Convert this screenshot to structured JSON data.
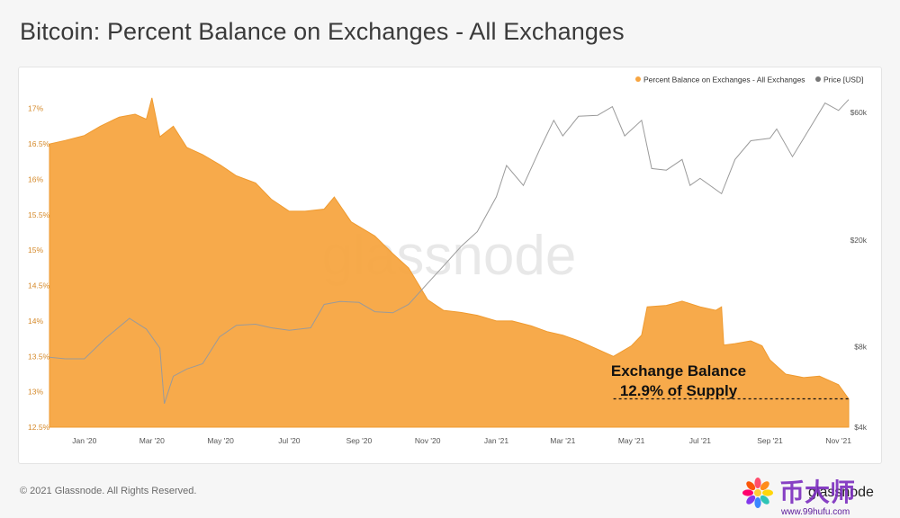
{
  "page": {
    "title": "Bitcoin: Percent Balance on Exchanges - All Exchanges",
    "copyright": "© 2021 Glassnode. All Rights Reserved.",
    "footer_brand": "glassnode",
    "watermark": "glassnode"
  },
  "colors": {
    "balance_fill": "#f7a541",
    "balance_stroke": "#ef9a2f",
    "price_line": "#9a9a9a",
    "left_tick": "#d58a2b",
    "right_tick": "#555555",
    "annotation": "#111111"
  },
  "brand_badge": {
    "name": "币大师",
    "url": "www.99hufu.com"
  },
  "chart_data": {
    "type": "area",
    "title": "Bitcoin: Percent Balance on Exchanges - All Exchanges",
    "legend_position": "top-right",
    "grid": false,
    "x_range": [
      "2019-12-01",
      "2021-11-10"
    ],
    "x_ticks": [
      {
        "label": "Jan '20",
        "date": "2020-01-01"
      },
      {
        "label": "Mar '20",
        "date": "2020-03-01"
      },
      {
        "label": "May '20",
        "date": "2020-05-01"
      },
      {
        "label": "Jul '20",
        "date": "2020-07-01"
      },
      {
        "label": "Sep '20",
        "date": "2020-09-01"
      },
      {
        "label": "Nov '20",
        "date": "2020-11-01"
      },
      {
        "label": "Jan '21",
        "date": "2021-01-01"
      },
      {
        "label": "Mar '21",
        "date": "2021-03-01"
      },
      {
        "label": "May '21",
        "date": "2021-05-01"
      },
      {
        "label": "Jul '21",
        "date": "2021-07-01"
      },
      {
        "label": "Sep '21",
        "date": "2021-09-01"
      },
      {
        "label": "Nov '21",
        "date": "2021-11-01"
      }
    ],
    "y_left": {
      "range": [
        12.5,
        17.2
      ],
      "ticks": [
        {
          "value": 12.5,
          "label": "12.5%"
        },
        {
          "value": 13,
          "label": "13%"
        },
        {
          "value": 13.5,
          "label": "13.5%"
        },
        {
          "value": 14,
          "label": "14%"
        },
        {
          "value": 14.5,
          "label": "14.5%"
        },
        {
          "value": 15,
          "label": "15%"
        },
        {
          "value": 15.5,
          "label": "15.5%"
        },
        {
          "value": 16,
          "label": "16%"
        },
        {
          "value": 16.5,
          "label": "16.5%"
        },
        {
          "value": 17,
          "label": "17%"
        }
      ]
    },
    "y_right": {
      "scale": "log",
      "range": [
        4000,
        70000
      ],
      "ticks": [
        {
          "value": 4000,
          "label": "$4k"
        },
        {
          "value": 8000,
          "label": "$8k"
        },
        {
          "value": 20000,
          "label": "$20k"
        },
        {
          "value": 60000,
          "label": "$60k"
        }
      ]
    },
    "series": [
      {
        "name": "Percent Balance on Exchanges - All Exchanges",
        "kind": "area",
        "axis": "left",
        "points": [
          [
            "2019-12-01",
            16.5
          ],
          [
            "2019-12-15",
            16.55
          ],
          [
            "2020-01-01",
            16.62
          ],
          [
            "2020-01-15",
            16.75
          ],
          [
            "2020-02-01",
            16.88
          ],
          [
            "2020-02-15",
            16.92
          ],
          [
            "2020-02-25",
            16.85
          ],
          [
            "2020-03-01",
            17.15
          ],
          [
            "2020-03-08",
            16.6
          ],
          [
            "2020-03-20",
            16.75
          ],
          [
            "2020-04-01",
            16.45
          ],
          [
            "2020-04-15",
            16.35
          ],
          [
            "2020-05-01",
            16.2
          ],
          [
            "2020-05-15",
            16.05
          ],
          [
            "2020-06-01",
            15.95
          ],
          [
            "2020-06-15",
            15.72
          ],
          [
            "2020-07-01",
            15.55
          ],
          [
            "2020-07-15",
            15.55
          ],
          [
            "2020-08-01",
            15.58
          ],
          [
            "2020-08-10",
            15.75
          ],
          [
            "2020-08-25",
            15.4
          ],
          [
            "2020-09-15",
            15.2
          ],
          [
            "2020-10-01",
            14.95
          ],
          [
            "2020-10-15",
            14.75
          ],
          [
            "2020-11-01",
            14.3
          ],
          [
            "2020-11-15",
            14.15
          ],
          [
            "2020-12-01",
            14.12
          ],
          [
            "2020-12-15",
            14.08
          ],
          [
            "2021-01-01",
            14.0
          ],
          [
            "2021-01-15",
            14.0
          ],
          [
            "2021-02-01",
            13.93
          ],
          [
            "2021-02-15",
            13.85
          ],
          [
            "2021-03-01",
            13.8
          ],
          [
            "2021-03-15",
            13.72
          ],
          [
            "2021-04-01",
            13.6
          ],
          [
            "2021-04-15",
            13.5
          ],
          [
            "2021-05-01",
            13.65
          ],
          [
            "2021-05-10",
            13.8
          ],
          [
            "2021-05-15",
            14.2
          ],
          [
            "2021-06-01",
            14.22
          ],
          [
            "2021-06-15",
            14.28
          ],
          [
            "2021-07-01",
            14.2
          ],
          [
            "2021-07-15",
            14.15
          ],
          [
            "2021-07-20",
            14.2
          ],
          [
            "2021-07-22",
            13.66
          ],
          [
            "2021-08-01",
            13.68
          ],
          [
            "2021-08-15",
            13.72
          ],
          [
            "2021-08-25",
            13.65
          ],
          [
            "2021-09-01",
            13.45
          ],
          [
            "2021-09-15",
            13.25
          ],
          [
            "2021-10-01",
            13.2
          ],
          [
            "2021-10-15",
            13.22
          ],
          [
            "2021-11-01",
            13.1
          ],
          [
            "2021-11-10",
            12.9
          ]
        ]
      },
      {
        "name": "Price [USD]",
        "kind": "line",
        "axis": "right",
        "points": [
          [
            "2019-12-01",
            7300
          ],
          [
            "2019-12-15",
            7200
          ],
          [
            "2020-01-01",
            7200
          ],
          [
            "2020-01-20",
            8600
          ],
          [
            "2020-02-10",
            10200
          ],
          [
            "2020-02-25",
            9300
          ],
          [
            "2020-03-08",
            7900
          ],
          [
            "2020-03-12",
            4900
          ],
          [
            "2020-03-20",
            6200
          ],
          [
            "2020-04-01",
            6600
          ],
          [
            "2020-04-15",
            6900
          ],
          [
            "2020-04-30",
            8700
          ],
          [
            "2020-05-15",
            9600
          ],
          [
            "2020-06-01",
            9700
          ],
          [
            "2020-06-15",
            9400
          ],
          [
            "2020-07-01",
            9200
          ],
          [
            "2020-07-20",
            9400
          ],
          [
            "2020-08-01",
            11500
          ],
          [
            "2020-08-15",
            11800
          ],
          [
            "2020-09-01",
            11700
          ],
          [
            "2020-09-15",
            10800
          ],
          [
            "2020-10-01",
            10700
          ],
          [
            "2020-10-15",
            11500
          ],
          [
            "2020-11-01",
            13800
          ],
          [
            "2020-11-15",
            16000
          ],
          [
            "2020-12-01",
            19000
          ],
          [
            "2020-12-15",
            21500
          ],
          [
            "2021-01-01",
            29000
          ],
          [
            "2021-01-10",
            38000
          ],
          [
            "2021-01-25",
            32000
          ],
          [
            "2021-02-10",
            45000
          ],
          [
            "2021-02-21",
            56000
          ],
          [
            "2021-03-01",
            49000
          ],
          [
            "2021-03-15",
            58000
          ],
          [
            "2021-04-01",
            58500
          ],
          [
            "2021-04-14",
            63000
          ],
          [
            "2021-04-25",
            49000
          ],
          [
            "2021-05-10",
            56000
          ],
          [
            "2021-05-19",
            37000
          ],
          [
            "2021-06-01",
            36500
          ],
          [
            "2021-06-15",
            40000
          ],
          [
            "2021-06-22",
            32000
          ],
          [
            "2021-07-01",
            34000
          ],
          [
            "2021-07-20",
            29800
          ],
          [
            "2021-08-01",
            40000
          ],
          [
            "2021-08-15",
            47000
          ],
          [
            "2021-09-01",
            48000
          ],
          [
            "2021-09-07",
            52000
          ],
          [
            "2021-09-21",
            41000
          ],
          [
            "2021-10-01",
            48000
          ],
          [
            "2021-10-20",
            65000
          ],
          [
            "2021-11-01",
            61000
          ],
          [
            "2021-11-10",
            67000
          ]
        ]
      }
    ],
    "annotations": [
      {
        "line1": "Exchange Balance",
        "line2": "12.9% of Supply",
        "value": 12.9,
        "from_date": "2021-04-15",
        "to_date": "2021-11-10"
      }
    ]
  }
}
